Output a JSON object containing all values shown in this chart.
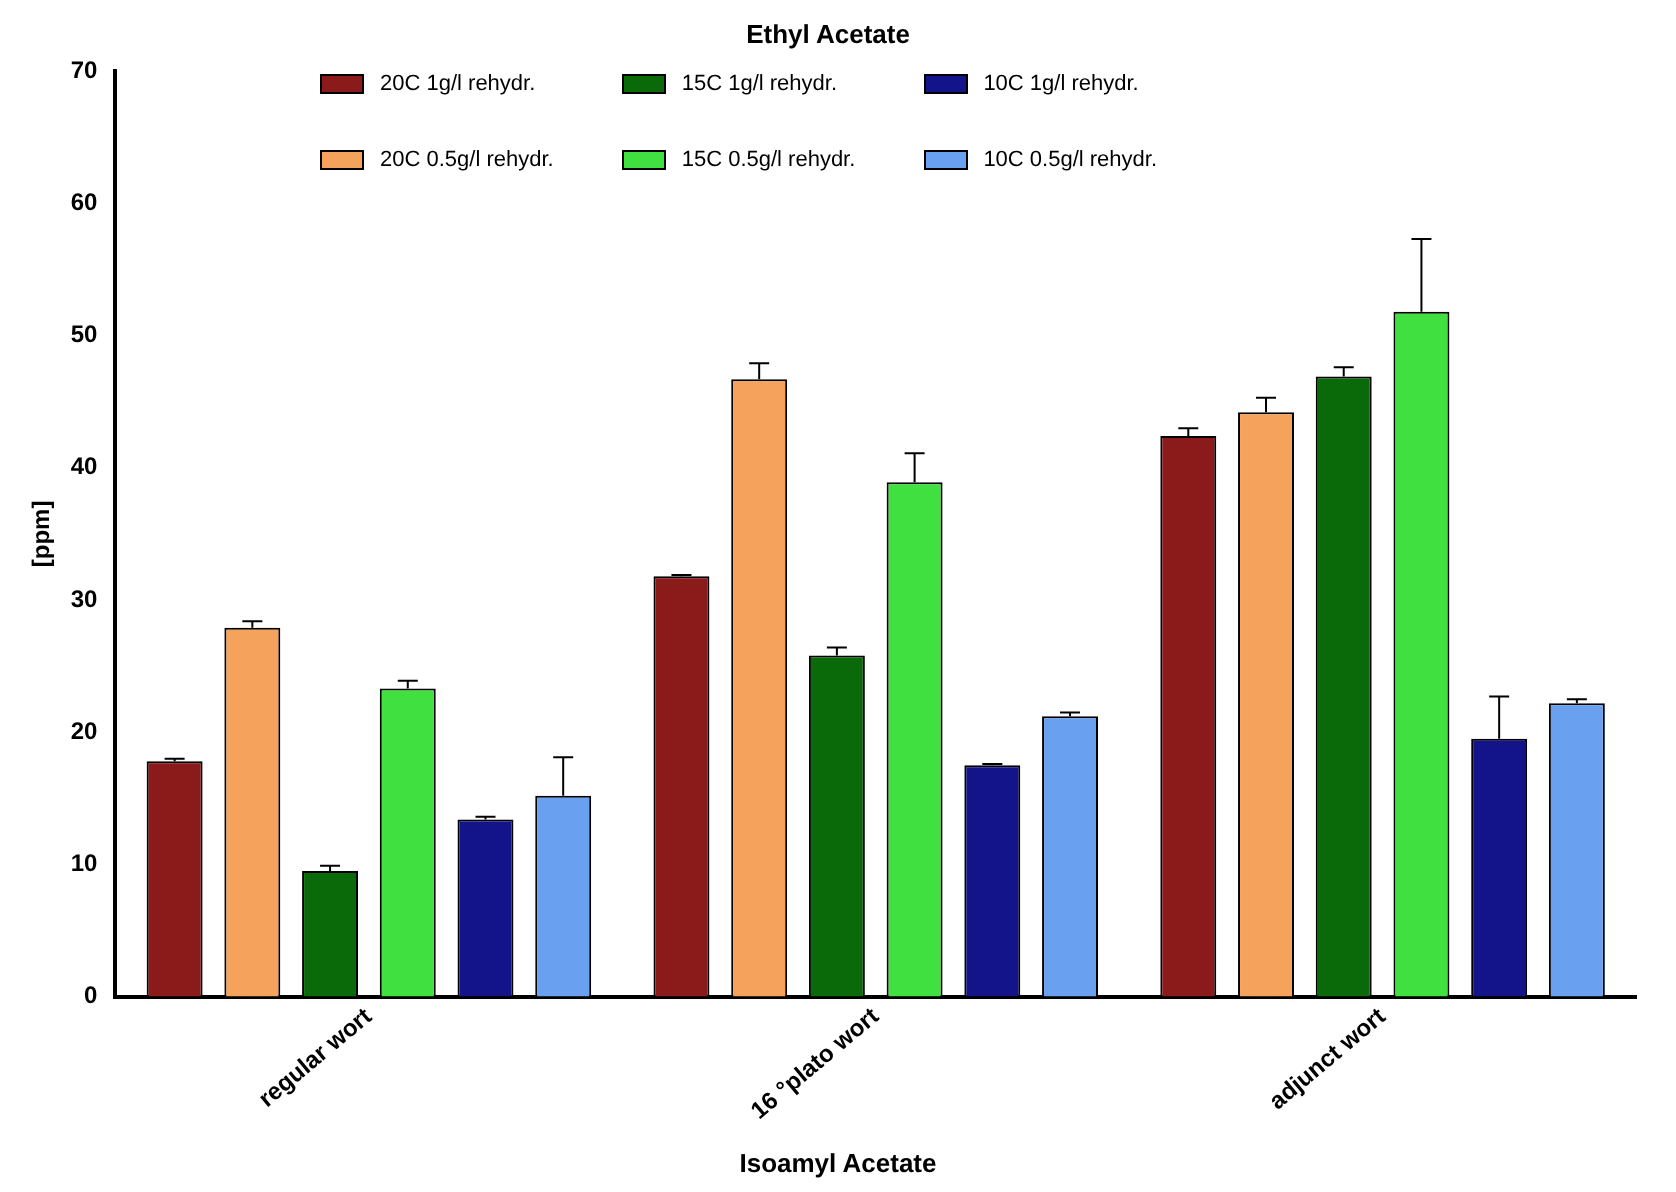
{
  "chart_data": {
    "type": "bar",
    "title": "Ethyl Acetate",
    "ylabel": "[ppm]",
    "categories": [
      "regular wort",
      "16 °plato wort",
      "adjunct wort"
    ],
    "series": [
      {
        "name": "20C 1g/l  rehydr.",
        "color": "#8b1a1a",
        "values": [
          17.8,
          31.8,
          42.4
        ],
        "errors": [
          [
            17.8,
            18.0
          ],
          [
            31.8,
            31.9
          ],
          [
            42.4,
            43.0
          ]
        ]
      },
      {
        "name": "20C 0.5g/l rehydr.",
        "color": "#f5a35c",
        "values": [
          27.9,
          46.7,
          44.2
        ],
        "errors": [
          [
            27.9,
            28.4
          ],
          [
            46.7,
            47.9
          ],
          [
            44.2,
            45.3
          ]
        ]
      },
      {
        "name": "15C 1g/l rehydr.",
        "color": "#0a6a0a",
        "values": [
          9.5,
          25.8,
          46.9
        ],
        "errors": [
          [
            9.5,
            9.9
          ],
          [
            25.8,
            26.4
          ],
          [
            46.9,
            47.6
          ]
        ]
      },
      {
        "name": "15C 0.5g/l rehydr.",
        "color": "#3fe03f",
        "values": [
          23.3,
          38.9,
          51.8
        ],
        "errors": [
          [
            23.3,
            23.9
          ],
          [
            38.9,
            41.1
          ],
          [
            51.8,
            57.3
          ]
        ]
      },
      {
        "name": "10C 1g/l rehydr.",
        "color": "#14148a",
        "values": [
          13.4,
          17.5,
          19.5
        ],
        "errors": [
          [
            13.4,
            13.6
          ],
          [
            17.5,
            17.6
          ],
          [
            19.5,
            22.7
          ]
        ]
      },
      {
        "name": "10C 0.5g/l rehydr.",
        "color": "#6aa0f0",
        "values": [
          15.2,
          21.2,
          22.2
        ],
        "errors": [
          [
            15.2,
            18.1
          ],
          [
            21.2,
            21.5
          ],
          [
            22.2,
            22.5
          ]
        ]
      }
    ],
    "ylim": [
      0,
      70
    ],
    "yticks": [
      0,
      10,
      20,
      30,
      40,
      50,
      60,
      70
    ],
    "grid": false,
    "legend": "top",
    "annotations": [
      "Isoamyl Acetate"
    ]
  }
}
